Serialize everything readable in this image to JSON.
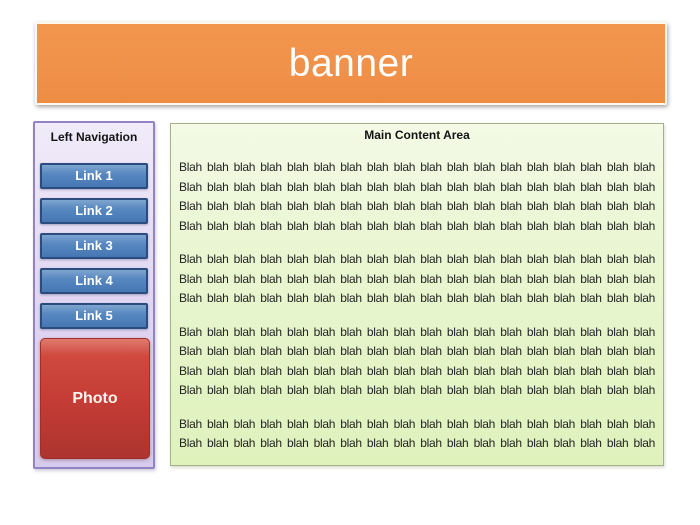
{
  "banner": {
    "title": "banner"
  },
  "sidebar": {
    "title": "Left Navigation",
    "links": [
      "Link 1",
      "Link 2",
      "Link 3",
      "Link 4",
      "Link 5"
    ],
    "photo_label": "Photo"
  },
  "main": {
    "title": "Main Content Area",
    "paragraphs": [
      [
        "Blah blah blah blah blah blah blah blah blah blah blah blah blah blah blah blah blah blah",
        "Blah blah blah blah blah blah blah blah blah blah blah blah blah blah blah blah blah blah",
        "Blah blah blah blah blah blah blah blah blah blah blah blah blah blah blah blah blah blah",
        "Blah blah blah blah blah blah blah blah blah blah blah blah blah blah blah blah blah blah"
      ],
      [
        "Blah blah blah blah blah blah blah blah blah blah blah blah blah blah blah blah blah blah",
        "Blah blah blah blah blah blah blah blah blah blah blah blah blah blah blah blah blah blah",
        "Blah blah blah blah blah blah blah blah blah blah blah blah blah blah blah blah blah blah"
      ],
      [
        "Blah blah blah blah blah blah blah blah blah blah blah blah blah blah blah blah blah blah",
        "Blah blah blah blah blah blah blah blah blah blah blah blah blah blah blah blah blah blah",
        "Blah blah blah blah blah blah blah blah blah blah blah blah blah blah blah blah blah blah",
        "Blah blah blah blah blah blah blah blah blah blah blah blah blah blah blah blah blah blah"
      ],
      [
        "Blah blah blah blah blah blah blah blah blah blah blah blah blah blah blah blah blah blah",
        "Blah blah blah blah blah blah blah blah blah blah blah blah blah blah blah blah blah blah"
      ]
    ]
  },
  "colors": {
    "banner_fill": "#F0914A",
    "banner_border": "#FDF7EE",
    "banner_text": "#FFFFFF",
    "sidebar_fill": "#E2D8F3",
    "sidebar_border": "#9383C4",
    "link_fill": "#4F81BD",
    "link_border": "#2B4C7E",
    "link_text": "#FFFFFF",
    "photo_fill": "#C33B34",
    "main_fill": "#E6F4CD",
    "main_border": "#A3B185",
    "body_text": "#242424"
  }
}
